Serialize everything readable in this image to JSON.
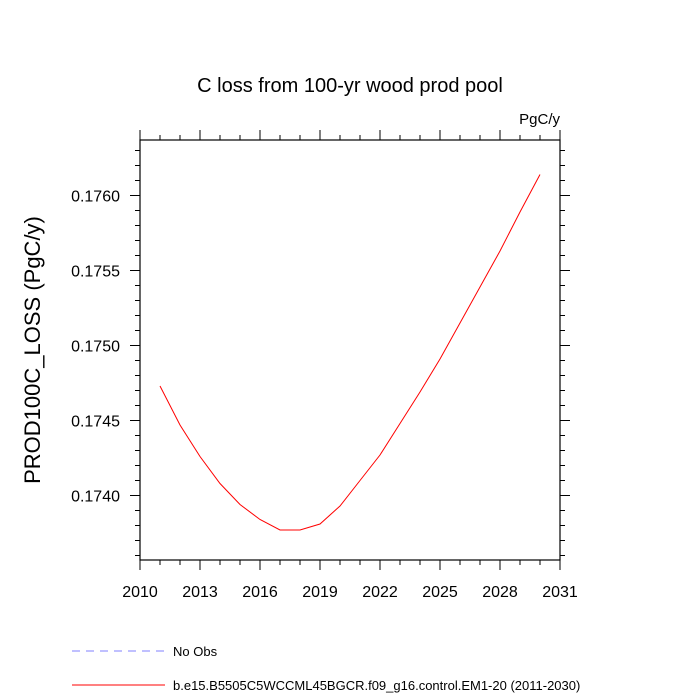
{
  "chart_data": {
    "type": "line",
    "title": "C loss from 100-yr wood prod pool",
    "units_label": "PgC/y",
    "ylabel": "PROD100C_LOSS  (PgC/y)",
    "xlabel": "",
    "xlim": [
      2010,
      2031
    ],
    "ylim": [
      0.17357,
      0.17637
    ],
    "x_ticks": [
      2010,
      2013,
      2016,
      2019,
      2022,
      2025,
      2028,
      2031
    ],
    "x_tick_labels": [
      "2010",
      "2013",
      "2016",
      "2019",
      "2022",
      "2025",
      "2028",
      "2031"
    ],
    "y_ticks": [
      0.174,
      0.1745,
      0.175,
      0.1755,
      0.176
    ],
    "y_tick_labels": [
      "0.1740",
      "0.1745",
      "0.1750",
      "0.1755",
      "0.1760"
    ],
    "grid": false,
    "series": [
      {
        "name": "b.e15.B5505C5WCCML45BGCR.f09_g16.control.EM1-20 (2011-2030)",
        "color": "#ff0000",
        "dash": "solid",
        "x": [
          2011,
          2012,
          2013,
          2014,
          2015,
          2016,
          2017,
          2018,
          2019,
          2020,
          2021,
          2022,
          2023,
          2024,
          2025,
          2026,
          2027,
          2028,
          2029,
          2030
        ],
        "y": [
          0.17473,
          0.17447,
          0.17426,
          0.17408,
          0.17394,
          0.17384,
          0.17377,
          0.17377,
          0.17381,
          0.17393,
          0.1741,
          0.17427,
          0.17448,
          0.17469,
          0.17491,
          0.17515,
          0.17539,
          0.17563,
          0.17589,
          0.17614
        ]
      },
      {
        "name": "No Obs",
        "color": "#8080ff",
        "dash": "dashed",
        "x": [],
        "y": []
      }
    ],
    "legend_position": "bottom-left"
  }
}
